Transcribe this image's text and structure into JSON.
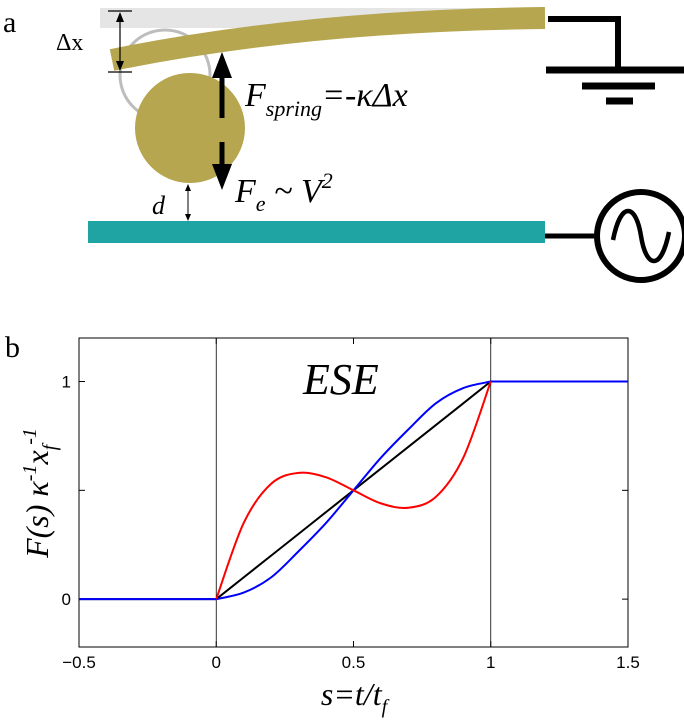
{
  "panel_a": {
    "label": "a",
    "dx_label": "Δx",
    "spring_F": "F",
    "spring_sub": "spring",
    "spring_eq": "=-κΔx",
    "fe_F": "F",
    "fe_sub": "e",
    "fe_rel": " ~ V",
    "fe_exp": "2",
    "d_label": "d",
    "colors": {
      "gold": "#b6a64f",
      "teal": "#1fa3a3",
      "ghost": "#bdbdbd"
    },
    "icons": [
      "ground-icon",
      "ac-source-icon"
    ]
  },
  "panel_b": {
    "label": "b",
    "annotation": "ESE",
    "ylabel_F": "F",
    "ylabel_rest": "(s) κ",
    "ylabel_sup1": "-1",
    "ylabel_x": "x",
    "ylabel_sub": "f",
    "ylabel_sup2": "-1",
    "xlabel_s": "s",
    "xlabel_eq": "=t/t",
    "xlabel_sub": "f"
  },
  "chart_data": {
    "type": "line",
    "xlim": [
      -0.5,
      1.5
    ],
    "ylim": [
      -0.22,
      1.2
    ],
    "x_ticks": [
      -0.5,
      0,
      0.5,
      1,
      1.5
    ],
    "x_tick_labels": [
      "−0.5",
      "0",
      "0.5",
      "1",
      "1.5"
    ],
    "y_ticks": [
      0,
      0.5,
      1
    ],
    "y_tick_labels": [
      "0",
      "",
      "1"
    ],
    "vlines": [
      0,
      1
    ],
    "grid": false,
    "series": [
      {
        "color": "#000000",
        "x": [
          -0.5,
          0,
          0.1,
          0.2,
          0.3,
          0.4,
          0.5,
          0.6,
          0.7,
          0.8,
          0.9,
          1.0,
          1.5
        ],
        "y": [
          0,
          0,
          0.1,
          0.2,
          0.3,
          0.4,
          0.5,
          0.6,
          0.7,
          0.8,
          0.9,
          1.0,
          1.0
        ]
      },
      {
        "color": "#0000ff",
        "x": [
          -0.5,
          0,
          0.1,
          0.2,
          0.3,
          0.4,
          0.5,
          0.6,
          0.7,
          0.8,
          0.9,
          1.0,
          1.5
        ],
        "y": [
          0,
          0,
          0.03,
          0.1,
          0.22,
          0.35,
          0.5,
          0.65,
          0.78,
          0.9,
          0.97,
          1.0,
          1.0
        ]
      },
      {
        "color": "#ff0000",
        "x": [
          0,
          0.1,
          0.2,
          0.3,
          0.4,
          0.5,
          0.6,
          0.7,
          0.8,
          0.9,
          1.0
        ],
        "y": [
          0,
          0.35,
          0.53,
          0.58,
          0.56,
          0.5,
          0.44,
          0.42,
          0.47,
          0.65,
          1.0
        ]
      }
    ]
  }
}
